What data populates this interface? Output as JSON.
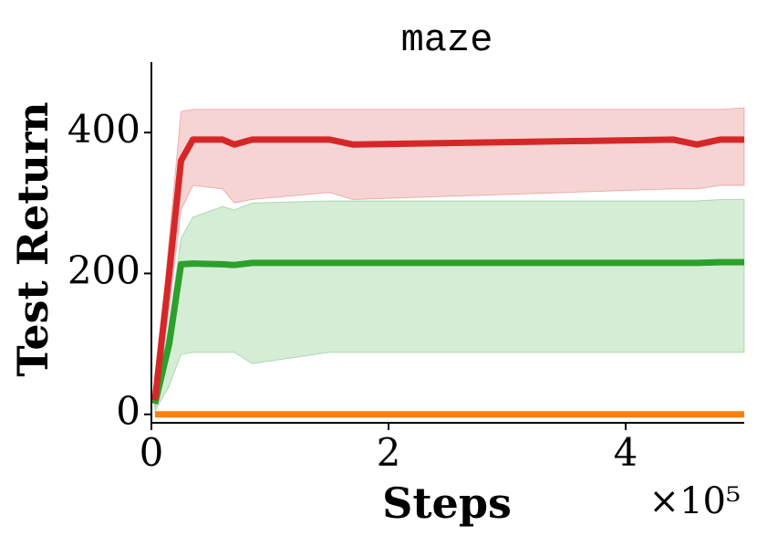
{
  "chart_data": {
    "type": "line",
    "title": "maze",
    "x_label": "Steps",
    "x_scale_label": "×10⁵",
    "y_label": "Test Return",
    "x": [
      0.03,
      0.15,
      0.25,
      0.35,
      0.6,
      0.7,
      0.85,
      1.5,
      1.7,
      4.4,
      4.6,
      4.8,
      5.0
    ],
    "xlim": [
      0,
      5
    ],
    "xticks": [
      0,
      2,
      4
    ],
    "ylim": [
      -12,
      500
    ],
    "yticks": [
      0,
      200,
      400
    ],
    "series": [
      {
        "color": "#d62728",
        "values": [
          20,
          200,
          360,
          390,
          390,
          383,
          390,
          390,
          383,
          390,
          383,
          390,
          390
        ],
        "lower": [
          10,
          150,
          290,
          325,
          320,
          300,
          305,
          315,
          305,
          320,
          320,
          325,
          325
        ],
        "upper": [
          20,
          250,
          430,
          433,
          433,
          433,
          433,
          433,
          433,
          433,
          433,
          433,
          435
        ]
      },
      {
        "color": "#2ca02c",
        "values": [
          15,
          100,
          213,
          214,
          213,
          212,
          215,
          215,
          215,
          215,
          215,
          216,
          216
        ],
        "lower": [
          5,
          40,
          85,
          88,
          88,
          88,
          72,
          88,
          88,
          88,
          88,
          88,
          88
        ],
        "upper": [
          20,
          130,
          250,
          280,
          295,
          290,
          300,
          303,
          303,
          303,
          303,
          305,
          305
        ]
      },
      {
        "color": "#ff7f0e",
        "values": [
          0,
          0,
          0,
          0,
          0,
          0,
          0,
          0,
          0,
          0,
          0,
          0,
          0
        ]
      }
    ]
  }
}
